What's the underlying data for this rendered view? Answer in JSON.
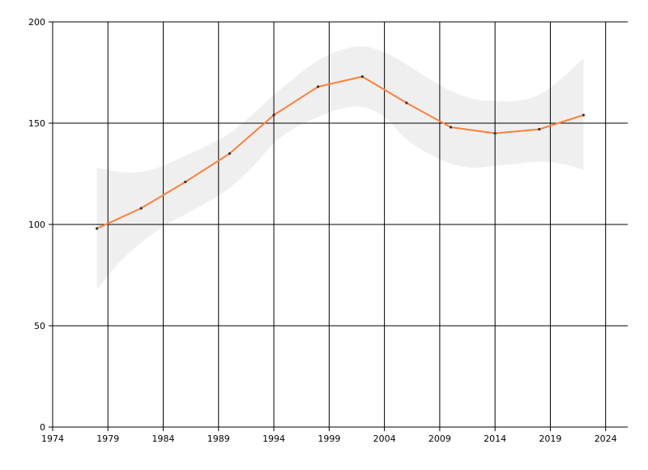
{
  "chart_data": {
    "type": "line",
    "title": "",
    "xlabel": "",
    "ylabel": "",
    "xlim": [
      1974,
      2026
    ],
    "ylim": [
      0,
      200
    ],
    "x_ticks": [
      1974,
      1979,
      1984,
      1989,
      1994,
      1999,
      2004,
      2009,
      2014,
      2019,
      2024
    ],
    "y_ticks": [
      0,
      50,
      100,
      150,
      200
    ],
    "grid": true,
    "legend": "none",
    "colors": {
      "line": "#ff7f3a",
      "band": "#efefef",
      "marker": "#333333",
      "grid": "#000000"
    },
    "series": [
      {
        "x": [
          1978,
          1982,
          1986,
          1990,
          1994,
          1998,
          2002,
          2006,
          2010,
          2014,
          2018,
          2022
        ],
        "y": [
          98,
          108,
          121,
          135,
          154,
          168,
          173,
          160,
          148,
          145,
          147,
          154
        ]
      }
    ],
    "band": {
      "x": [
        1978,
        1980,
        1982,
        1984,
        1986,
        1988,
        1990,
        1992,
        1994,
        1996,
        1998,
        2000,
        2002,
        2004,
        2006,
        2008,
        2010,
        2012,
        2014,
        2016,
        2018,
        2020,
        2022
      ],
      "upper": [
        128,
        126,
        126,
        129,
        134,
        139,
        145,
        154,
        164,
        173,
        181,
        186,
        188,
        185,
        179,
        172,
        166,
        162,
        161,
        161,
        164,
        172,
        182
      ],
      "lower": [
        68,
        81,
        91,
        99,
        105,
        111,
        118,
        128,
        140,
        148,
        153,
        157,
        158,
        153,
        142,
        135,
        130,
        128,
        129,
        130,
        131,
        130,
        127
      ]
    }
  }
}
